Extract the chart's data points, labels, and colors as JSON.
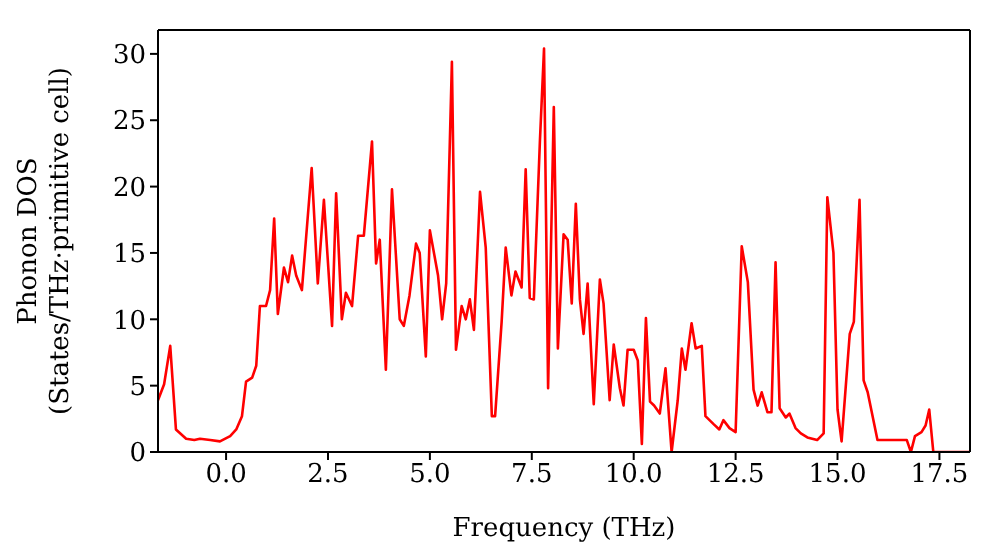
{
  "chart_data": {
    "type": "line",
    "xlabel": "Frequency (THz)",
    "ylabel": "Phonon DOS\n(States/THz·primitive cell)",
    "x": [
      -1.67,
      -1.52,
      -1.37,
      -1.23,
      -0.98,
      -0.78,
      -0.64,
      -0.39,
      -0.15,
      0.1,
      0.25,
      0.39,
      0.49,
      0.64,
      0.74,
      0.83,
      0.98,
      1.08,
      1.18,
      1.27,
      1.42,
      1.52,
      1.62,
      1.72,
      1.86,
      2.1,
      2.25,
      2.4,
      2.6,
      2.7,
      2.84,
      2.94,
      3.09,
      3.24,
      3.38,
      3.58,
      3.68,
      3.77,
      3.92,
      4.07,
      4.26,
      4.36,
      4.5,
      4.66,
      4.75,
      4.9,
      5.0,
      5.2,
      5.3,
      5.4,
      5.54,
      5.64,
      5.78,
      5.88,
      5.98,
      6.08,
      6.23,
      6.37,
      6.52,
      6.6,
      6.76,
      6.86,
      7.0,
      7.1,
      7.25,
      7.35,
      7.45,
      7.55,
      7.7,
      7.8,
      7.9,
      8.04,
      8.14,
      8.28,
      8.38,
      8.48,
      8.58,
      8.68,
      8.77,
      8.87,
      9.02,
      9.17,
      9.26,
      9.41,
      9.51,
      9.66,
      9.75,
      9.85,
      10.0,
      10.1,
      10.2,
      10.3,
      10.4,
      10.5,
      10.64,
      10.78,
      10.93,
      11.08,
      11.18,
      11.27,
      11.42,
      11.52,
      11.67,
      11.76,
      11.96,
      12.1,
      12.2,
      12.35,
      12.5,
      12.65,
      12.8,
      12.94,
      13.04,
      13.14,
      13.28,
      13.38,
      13.48,
      13.58,
      13.73,
      13.82,
      13.97,
      14.1,
      14.26,
      14.5,
      14.66,
      14.75,
      14.9,
      15.0,
      15.1,
      15.3,
      15.4,
      15.54,
      15.64,
      15.74,
      15.98,
      16.5,
      16.7,
      16.8,
      16.9,
      17.06,
      17.16,
      17.25,
      17.35,
      18.25
    ],
    "series": [
      {
        "color": "#ff0000",
        "values": [
          3.9,
          5.1,
          8,
          1.7,
          1.0,
          0.9,
          1.0,
          0.9,
          0.8,
          1.2,
          1.7,
          2.7,
          5.3,
          5.6,
          6.5,
          11,
          11,
          12.2,
          17.6,
          10.4,
          13.9,
          12.8,
          14.8,
          13.3,
          12.2,
          21.4,
          12.7,
          19,
          9.5,
          19.5,
          10,
          12,
          11,
          16.3,
          16.3,
          23.4,
          14.2,
          16,
          6.2,
          19.8,
          10,
          9.5,
          11.8,
          15.7,
          15,
          7.2,
          16.7,
          13.3,
          10,
          12.7,
          29.4,
          7.7,
          11,
          10,
          11.5,
          9.2,
          19.6,
          15.4,
          2.7,
          2.7,
          9.8,
          15.4,
          11.8,
          13.6,
          12.4,
          21.3,
          11.6,
          11.5,
          23.5,
          30.4,
          4.8,
          26,
          7.8,
          16.4,
          16,
          11.2,
          18.7,
          11.5,
          8.9,
          12.7,
          3.6,
          13,
          11.2,
          3.9,
          8.1,
          4.8,
          3.5,
          7.7,
          7.7,
          6.9,
          0.6,
          10.1,
          3.8,
          3.5,
          2.9,
          6.3,
          0,
          3.9,
          7.8,
          6.2,
          9.7,
          7.8,
          8,
          2.7,
          2.1,
          1.7,
          2.4,
          1.8,
          1.5,
          15.5,
          12.8,
          4.7,
          3.5,
          4.5,
          3,
          3,
          14.3,
          3.3,
          2.6,
          2.9,
          1.8,
          1.4,
          1.1,
          0.9,
          1.4,
          19.2,
          15,
          3.2,
          0.8,
          8.9,
          9.8,
          19,
          5.4,
          4.5,
          0.9,
          0.9,
          0.9,
          0,
          1.2,
          1.5,
          2,
          3.2,
          0,
          0
        ]
      }
    ],
    "xlim": [
      -1.67,
      18.25
    ],
    "xticks": [
      {
        "value": 0,
        "label": "0.0"
      },
      2.5,
      {
        "value": 5,
        "label": "5.0"
      },
      7.5,
      {
        "value": 10,
        "label": "10.0"
      },
      12.5,
      {
        "value": 15,
        "label": "15.0"
      },
      17.5
    ],
    "ylim": [
      0,
      31.8
    ],
    "yticks": [
      0,
      5,
      10,
      15,
      20,
      25,
      30
    ],
    "marker": "none",
    "line_style": "solid"
  }
}
